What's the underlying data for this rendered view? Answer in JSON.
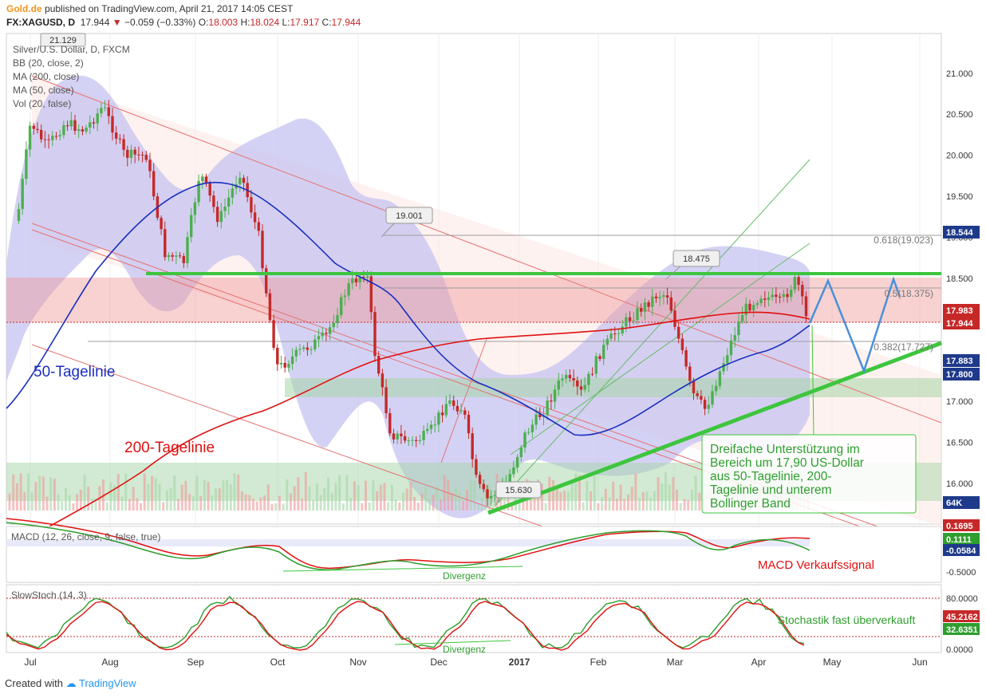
{
  "header": {
    "brand": "Gold.de",
    "published": "published on TradingView.com, April 21, 2017 14:05 CEST",
    "symbol": "FX:XAGUSD, D",
    "last": "17.944",
    "change": "−0.059 (−0.33%)",
    "o_label": "O:",
    "o": "18.003",
    "h_label": "H:",
    "h": "18.024",
    "l_label": "L:",
    "l": "17.917",
    "c_label": "C:",
    "c": "17.944"
  },
  "legend": {
    "title": "Silver/U.S. Dollar, D, FXCM",
    "bb": "BB (20, close, 2)",
    "ma200": "MA (200, close)",
    "ma50": "MA (50, close)",
    "vol": "Vol (20, false)"
  },
  "annotations": {
    "ma50_label": "50-Tagelinie",
    "ma200_label": "200-Tagelinie",
    "callout_high1": "21.129",
    "callout_nov": "19.001",
    "callout_feb": "18.475",
    "callout_low": "15.630",
    "fib618": "0.618(19.023)",
    "fib5": "0.5(18.375)",
    "fib382": "0.382(17.727)",
    "support_text": "Dreifache Unterstützung im Bereich um 17,90 US-Dollar aus 50-Tagelinie, 200-Tagelinie und unterem Bollinger Band",
    "macd_signal": "MACD Verkaufssignal",
    "divergenz_macd": "Divergenz",
    "divergenz_stoch": "Divergenz",
    "stoch_text": "Stochastik fast überverkauft"
  },
  "panels": {
    "macd_title": "MACD (12, 26, close, 9, false, true)",
    "stoch_title": "SlowStoch (14, 3)"
  },
  "footer": {
    "created": "Created with",
    "tv": "TradingView"
  },
  "colors": {
    "up": "#4caf50",
    "down": "#c62828",
    "ma50": "#1a2fbf",
    "ma200": "#e01010",
    "support": "#3ec53e",
    "forecast": "#4a90d9",
    "bb_fill": "#c5c3f0"
  },
  "chart_data": {
    "type": "candlestick",
    "title": "Silver/U.S. Dollar, D, FXCM",
    "x_ticks": [
      "Jul",
      "Aug",
      "Sep",
      "Oct",
      "Nov",
      "Dec",
      "2017",
      "Feb",
      "Mar",
      "Apr",
      "May",
      "Jun"
    ],
    "y_ticks": [
      "21.000",
      "20.500",
      "20.000",
      "19.500",
      "19.000",
      "18.500",
      "18.000",
      "17.500",
      "17.000",
      "16.500",
      "16.000"
    ],
    "price_badges": [
      {
        "label": "18.544",
        "color": "#1e3a8a"
      },
      {
        "label": "17.983",
        "color": "#c62828"
      },
      {
        "label": "17.944",
        "color": "#c62828"
      },
      {
        "label": "17.883",
        "color": "#1e3a8a"
      },
      {
        "label": "17.800",
        "color": "#1e3a8a"
      },
      {
        "label": "64K",
        "color": "#1e3a8a"
      }
    ],
    "macd_ticks": [
      "-0.5000"
    ],
    "macd_badges": [
      {
        "label": "0.1695",
        "color": "#c62828"
      },
      {
        "label": "0.1111",
        "color": "#2e9e2e"
      },
      {
        "label": "-0.0584",
        "color": "#1e3a8a"
      }
    ],
    "stoch_ticks": [
      "80.0000",
      "0.0000"
    ],
    "stoch_badges": [
      {
        "label": "45.2162",
        "color": "#c62828"
      },
      {
        "label": "32.6351",
        "color": "#2e9e2e"
      }
    ],
    "close_path": [
      [
        "2016-07-01",
        19.2
      ],
      [
        "2016-07-06",
        20.4
      ],
      [
        "2016-07-12",
        20.1
      ],
      [
        "2016-07-19",
        20.4
      ],
      [
        "2016-07-26",
        20.3
      ],
      [
        "2016-08-02",
        20.6
      ],
      [
        "2016-08-10",
        20.0
      ],
      [
        "2016-08-18",
        20.0
      ],
      [
        "2016-08-25",
        18.8
      ],
      [
        "2016-09-01",
        18.7
      ],
      [
        "2016-09-07",
        19.8
      ],
      [
        "2016-09-14",
        19.2
      ],
      [
        "2016-09-22",
        19.8
      ],
      [
        "2016-09-29",
        19.0
      ],
      [
        "2016-10-03",
        18.0
      ],
      [
        "2016-10-06",
        17.4
      ],
      [
        "2016-10-14",
        17.6
      ],
      [
        "2016-10-24",
        17.8
      ],
      [
        "2016-11-01",
        18.4
      ],
      [
        "2016-11-08",
        18.6
      ],
      [
        "2016-11-11",
        17.6
      ],
      [
        "2016-11-17",
        16.6
      ],
      [
        "2016-11-25",
        16.5
      ],
      [
        "2016-12-01",
        16.6
      ],
      [
        "2016-12-08",
        17.0
      ],
      [
        "2016-12-14",
        16.9
      ],
      [
        "2016-12-19",
        16.0
      ],
      [
        "2016-12-23",
        15.8
      ],
      [
        "2016-12-30",
        16.0
      ],
      [
        "2017-01-06",
        16.6
      ],
      [
        "2017-01-13",
        16.9
      ],
      [
        "2017-01-20",
        17.3
      ],
      [
        "2017-01-27",
        17.1
      ],
      [
        "2017-02-03",
        17.6
      ],
      [
        "2017-02-10",
        17.9
      ],
      [
        "2017-02-17",
        18.1
      ],
      [
        "2017-02-24",
        18.3
      ],
      [
        "2017-02-28",
        18.3
      ],
      [
        "2017-03-03",
        17.9
      ],
      [
        "2017-03-09",
        17.1
      ],
      [
        "2017-03-14",
        16.9
      ],
      [
        "2017-03-21",
        17.5
      ],
      [
        "2017-03-28",
        18.1
      ],
      [
        "2017-04-04",
        18.3
      ],
      [
        "2017-04-11",
        18.2
      ],
      [
        "2017-04-17",
        18.5
      ],
      [
        "2017-04-21",
        17.944
      ]
    ],
    "forecast_path": [
      [
        "2017-04-21",
        17.944
      ],
      [
        "2017-04-28",
        18.5
      ],
      [
        "2017-05-12",
        17.6
      ],
      [
        "2017-05-22",
        18.55
      ],
      [
        "2017-05-25",
        18.2
      ]
    ],
    "support_level": 18.544,
    "fib_levels": [
      19.023,
      18.375,
      17.727
    ]
  }
}
